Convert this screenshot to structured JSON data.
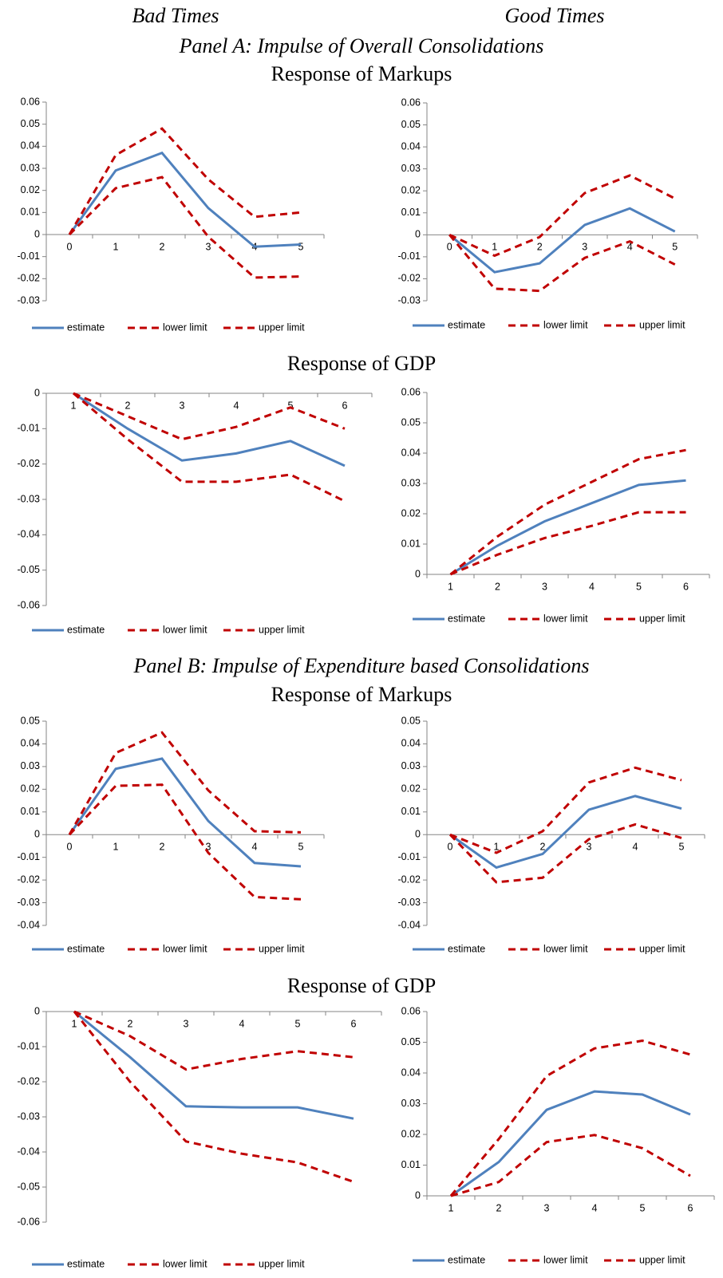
{
  "column_titles": [
    "Bad Times",
    "Good Times"
  ],
  "panel_titles": [
    "Panel A: Impulse of Overall Consolidations",
    "Panel B: Impulse of Expenditure based Consolidations"
  ],
  "section_titles": [
    "Response of Markups",
    "Response of GDP",
    "Response of Markups",
    "Response of GDP"
  ],
  "chart_data": [
    {
      "type": "line",
      "categories": [
        "0",
        "1",
        "2",
        "3",
        "4",
        "5"
      ],
      "ylim": [
        -0.03,
        0.06
      ],
      "yticks": [
        -0.03,
        -0.02,
        -0.01,
        0,
        0.01,
        0.02,
        0.03,
        0.04,
        0.05,
        0.06
      ],
      "series": [
        {
          "name": "estimate",
          "color": "#4f81bd",
          "dashed": false,
          "values": [
            0,
            0.029,
            0.037,
            0.012,
            -0.0055,
            -0.0045
          ]
        },
        {
          "name": "lower limit",
          "color": "#c00000",
          "dashed": true,
          "values": [
            0,
            0.021,
            0.026,
            -0.001,
            -0.0195,
            -0.019
          ]
        },
        {
          "name": "upper limit",
          "color": "#c00000",
          "dashed": true,
          "values": [
            0,
            0.036,
            0.048,
            0.025,
            0.008,
            0.01
          ]
        }
      ]
    },
    {
      "type": "line",
      "categories": [
        "0",
        "1",
        "2",
        "3",
        "4",
        "5"
      ],
      "ylim": [
        -0.03,
        0.06
      ],
      "yticks": [
        -0.03,
        -0.02,
        -0.01,
        0,
        0.01,
        0.02,
        0.03,
        0.04,
        0.05,
        0.06
      ],
      "series": [
        {
          "name": "estimate",
          "color": "#4f81bd",
          "dashed": false,
          "values": [
            0,
            -0.017,
            -0.013,
            0.0045,
            0.012,
            0.0015
          ]
        },
        {
          "name": "lower limit",
          "color": "#c00000",
          "dashed": true,
          "values": [
            0,
            -0.0245,
            -0.0255,
            -0.0105,
            -0.003,
            -0.0135
          ]
        },
        {
          "name": "upper limit",
          "color": "#c00000",
          "dashed": true,
          "values": [
            0,
            -0.0095,
            -0.001,
            0.019,
            0.027,
            0.0165
          ]
        }
      ]
    },
    {
      "type": "line",
      "categories": [
        "1",
        "2",
        "3",
        "4",
        "5",
        "6"
      ],
      "ylim": [
        -0.06,
        0
      ],
      "yticks": [
        -0.06,
        -0.05,
        -0.04,
        -0.03,
        -0.02,
        -0.01,
        0
      ],
      "series": [
        {
          "name": "estimate",
          "color": "#4f81bd",
          "dashed": false,
          "values": [
            0,
            -0.01,
            -0.019,
            -0.017,
            -0.0135,
            -0.0205
          ]
        },
        {
          "name": "lower limit",
          "color": "#c00000",
          "dashed": true,
          "values": [
            0,
            -0.013,
            -0.025,
            -0.025,
            -0.023,
            -0.0305
          ]
        },
        {
          "name": "upper limit",
          "color": "#c00000",
          "dashed": true,
          "values": [
            0,
            -0.0065,
            -0.013,
            -0.0095,
            -0.004,
            -0.01
          ]
        }
      ]
    },
    {
      "type": "line",
      "categories": [
        "1",
        "2",
        "3",
        "4",
        "5",
        "6"
      ],
      "ylim": [
        0,
        0.06
      ],
      "yticks": [
        0,
        0.01,
        0.02,
        0.03,
        0.04,
        0.05,
        0.06
      ],
      "series": [
        {
          "name": "estimate",
          "color": "#4f81bd",
          "dashed": false,
          "values": [
            0,
            0.0095,
            0.0175,
            0.0235,
            0.0295,
            0.031
          ]
        },
        {
          "name": "lower limit",
          "color": "#c00000",
          "dashed": true,
          "values": [
            0,
            0.0065,
            0.012,
            0.016,
            0.0205,
            0.0205
          ]
        },
        {
          "name": "upper limit",
          "color": "#c00000",
          "dashed": true,
          "values": [
            0,
            0.0125,
            0.023,
            0.0305,
            0.038,
            0.041
          ]
        }
      ]
    },
    {
      "type": "line",
      "categories": [
        "0",
        "1",
        "2",
        "3",
        "4",
        "5"
      ],
      "ylim": [
        -0.04,
        0.05
      ],
      "yticks": [
        -0.04,
        -0.03,
        -0.02,
        -0.01,
        0,
        0.01,
        0.02,
        0.03,
        0.04,
        0.05
      ],
      "series": [
        {
          "name": "estimate",
          "color": "#4f81bd",
          "dashed": false,
          "values": [
            0,
            0.029,
            0.0335,
            0.006,
            -0.0125,
            -0.014
          ]
        },
        {
          "name": "lower limit",
          "color": "#c00000",
          "dashed": true,
          "values": [
            0,
            0.0215,
            0.022,
            -0.008,
            -0.0275,
            -0.0285
          ]
        },
        {
          "name": "upper limit",
          "color": "#c00000",
          "dashed": true,
          "values": [
            0,
            0.036,
            0.045,
            0.0195,
            0.0015,
            0.001
          ]
        }
      ]
    },
    {
      "type": "line",
      "categories": [
        "0",
        "1",
        "2",
        "3",
        "4",
        "5"
      ],
      "ylim": [
        -0.04,
        0.05
      ],
      "yticks": [
        -0.04,
        -0.03,
        -0.02,
        -0.01,
        0,
        0.01,
        0.02,
        0.03,
        0.04,
        0.05
      ],
      "series": [
        {
          "name": "estimate",
          "color": "#4f81bd",
          "dashed": false,
          "values": [
            0,
            -0.0145,
            -0.0085,
            0.011,
            0.017,
            0.0115
          ]
        },
        {
          "name": "lower limit",
          "color": "#c00000",
          "dashed": true,
          "values": [
            0,
            -0.021,
            -0.019,
            -0.002,
            0.0045,
            -0.0015
          ]
        },
        {
          "name": "upper limit",
          "color": "#c00000",
          "dashed": true,
          "values": [
            0,
            -0.008,
            0.0015,
            0.023,
            0.0295,
            0.024
          ]
        }
      ]
    },
    {
      "type": "line",
      "categories": [
        "1",
        "2",
        "3",
        "4",
        "5",
        "6"
      ],
      "ylim": [
        -0.06,
        0
      ],
      "yticks": [
        -0.06,
        -0.05,
        -0.04,
        -0.03,
        -0.02,
        -0.01,
        0
      ],
      "series": [
        {
          "name": "estimate",
          "color": "#4f81bd",
          "dashed": false,
          "values": [
            0,
            -0.013,
            -0.027,
            -0.0273,
            -0.0273,
            -0.0305
          ]
        },
        {
          "name": "lower limit",
          "color": "#c00000",
          "dashed": true,
          "values": [
            0,
            -0.02,
            -0.037,
            -0.0405,
            -0.043,
            -0.0485
          ]
        },
        {
          "name": "upper limit",
          "color": "#c00000",
          "dashed": true,
          "values": [
            0,
            -0.007,
            -0.0165,
            -0.0135,
            -0.0113,
            -0.013
          ]
        }
      ]
    },
    {
      "type": "line",
      "categories": [
        "1",
        "2",
        "3",
        "4",
        "5",
        "6"
      ],
      "ylim": [
        0,
        0.06
      ],
      "yticks": [
        0,
        0.01,
        0.02,
        0.03,
        0.04,
        0.05,
        0.06
      ],
      "series": [
        {
          "name": "estimate",
          "color": "#4f81bd",
          "dashed": false,
          "values": [
            0,
            0.011,
            0.028,
            0.034,
            0.033,
            0.0265
          ]
        },
        {
          "name": "lower limit",
          "color": "#c00000",
          "dashed": true,
          "values": [
            0,
            0.0045,
            0.0175,
            0.0198,
            0.0155,
            0.0065
          ]
        },
        {
          "name": "upper limit",
          "color": "#c00000",
          "dashed": true,
          "values": [
            0,
            0.0185,
            0.039,
            0.048,
            0.0505,
            0.046
          ]
        }
      ]
    }
  ]
}
